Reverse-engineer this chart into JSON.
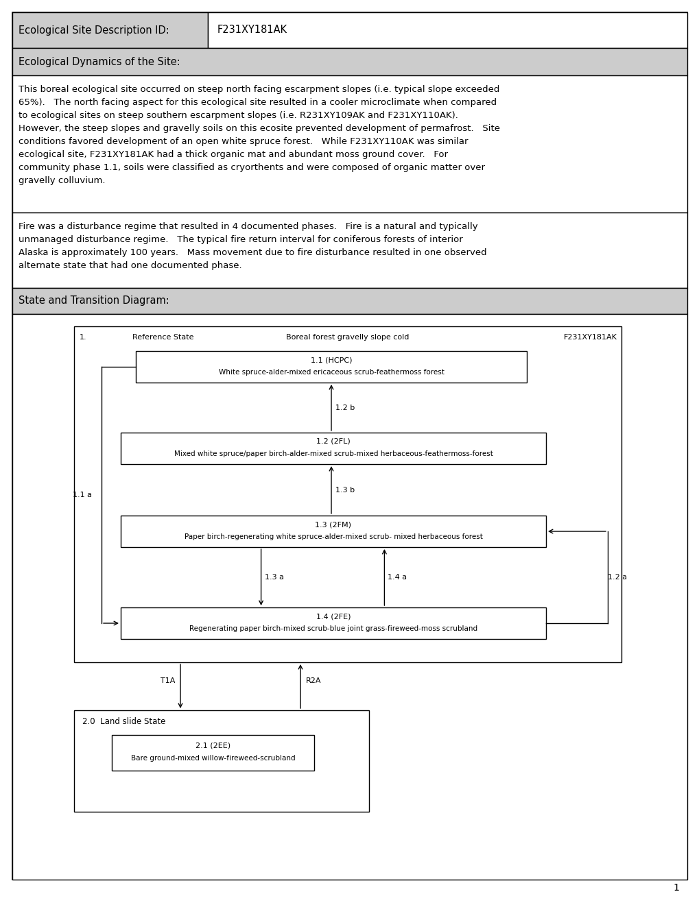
{
  "title_label": "Ecological Site Description ID:",
  "title_id": "F231XY181AK",
  "section_header": "Ecological Dynamics of the Site:",
  "paragraph1": "This boreal ecological site occurred on steep north facing escarpment slopes (i.e. typical slope exceeded\n65%).   The north facing aspect for this ecological site resulted in a cooler microclimate when compared\nto ecological sites on steep southern escarpment slopes (i.e. R231XY109AK and F231XY110AK).\nHowever, the steep slopes and gravelly soils on this ecosite prevented development of permafrost.   Site\nconditions favored development of an open white spruce forest.   While F231XY110AK was similar\necological site, F231XY181AK had a thick organic mat and abundant moss ground cover.   For\ncommunity phase 1.1, soils were classified as cryorthents and were composed of organic matter over\ngravelly colluvium.",
  "paragraph2": "Fire was a disturbance regime that resulted in 4 documented phases.   Fire is a natural and typically\nunmanaged disturbance regime.   The typical fire return interval for coniferous forests of interior\nAlaska is approximately 100 years.   Mass movement due to fire disturbance resulted in one observed\nalternate state that had one documented phase.",
  "diagram_header": "State and Transition Diagram:",
  "ref_state_num": "1.",
  "ref_state_label": "Reference State",
  "ref_state_center": "Boreal forest gravelly slope cold",
  "ref_state_id": "F231XY181AK",
  "box11_line1": "1.1 (HCPC)",
  "box11_line2": "White spruce-alder-mixed ericaceous scrub-feathermoss forest",
  "box12_line1": "1.2 (2FL)",
  "box12_line2": "Mixed white spruce/paper birch-alder-mixed scrub-mixed herbaceous-feathermoss-forest",
  "box13_line1": "1.3 (2FM)",
  "box13_line2": "Paper birch-regenerating white spruce-alder-mixed scrub- mixed herbaceous forest",
  "box14_line1": "1.4 (2FE)",
  "box14_line2": "Regenerating paper birch-mixed scrub-blue joint grass-fireweed-moss scrubland",
  "label_12b": "1.2 b",
  "label_13b": "1.3 b",
  "label_11a": "1.1 a",
  "label_12a": "1.2 a",
  "label_13a": "1.3 a",
  "label_14a": "1.4 a",
  "label_T1A": "T1A",
  "label_R2A": "R2A",
  "state2_label": "2.0  Land slide State",
  "box21_line1": "2.1 (2EE)",
  "box21_line2": "Bare ground-mixed willow-fireweed-scrubland",
  "page_num": "1",
  "bg_color": "#ffffff",
  "gray_section_bg": "#cccccc",
  "text_color": "#000000"
}
